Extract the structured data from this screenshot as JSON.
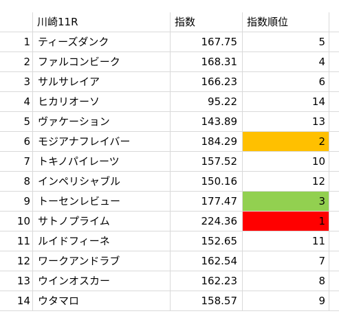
{
  "header": {
    "col_b": "川崎11R",
    "col_c": "指数",
    "col_d": "指数順位"
  },
  "rows": [
    {
      "num": "1",
      "name": "ティーズダンク",
      "index": "167.75",
      "rank": "5",
      "fill": ""
    },
    {
      "num": "2",
      "name": "ファルコンビーク",
      "index": "168.31",
      "rank": "4",
      "fill": ""
    },
    {
      "num": "3",
      "name": "サルサレイア",
      "index": "166.23",
      "rank": "6",
      "fill": ""
    },
    {
      "num": "4",
      "name": "ヒカリオーソ",
      "index": "95.22",
      "rank": "14",
      "fill": ""
    },
    {
      "num": "5",
      "name": "ヴァケーション",
      "index": "143.89",
      "rank": "13",
      "fill": ""
    },
    {
      "num": "6",
      "name": "モジアナフレイバー",
      "index": "184.29",
      "rank": "2",
      "fill": "#ffc000"
    },
    {
      "num": "7",
      "name": "トキノパイレーツ",
      "index": "157.52",
      "rank": "10",
      "fill": ""
    },
    {
      "num": "8",
      "name": "インペリシャブル",
      "index": "150.16",
      "rank": "12",
      "fill": ""
    },
    {
      "num": "9",
      "name": "トーセンレビュー",
      "index": "177.47",
      "rank": "3",
      "fill": "#92d050"
    },
    {
      "num": "10",
      "name": "サトノプライム",
      "index": "224.36",
      "rank": "1",
      "fill": "#ff0000"
    },
    {
      "num": "11",
      "name": "ルイドフィーネ",
      "index": "152.65",
      "rank": "11",
      "fill": ""
    },
    {
      "num": "12",
      "name": "ワークアンドラブ",
      "index": "162.54",
      "rank": "7",
      "fill": ""
    },
    {
      "num": "13",
      "name": "ウインオスカー",
      "index": "162.23",
      "rank": "8",
      "fill": ""
    },
    {
      "num": "14",
      "name": "ウタマロ",
      "index": "158.57",
      "rank": "9",
      "fill": ""
    }
  ]
}
